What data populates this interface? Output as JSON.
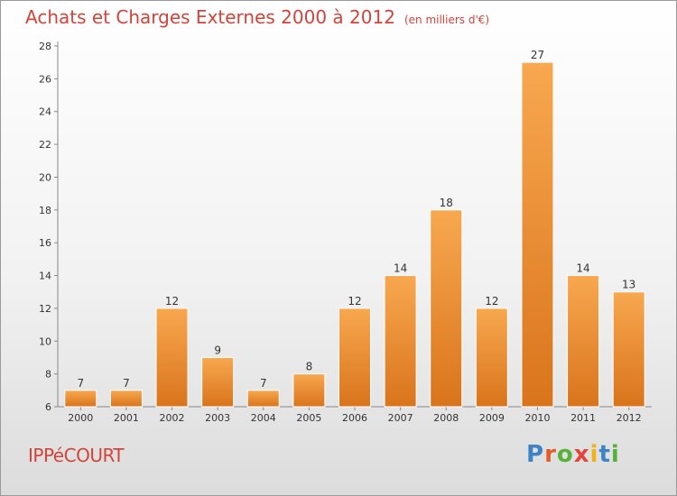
{
  "chart_data": {
    "type": "bar",
    "title": "Achats et Charges Externes 2000 à 2012",
    "subtitle": "(en milliers d'€)",
    "categories": [
      "2000",
      "2001",
      "2002",
      "2003",
      "2004",
      "2005",
      "2006",
      "2007",
      "2008",
      "2009",
      "2010",
      "2011",
      "2012"
    ],
    "values": [
      7,
      7,
      12,
      9,
      7,
      8,
      12,
      14,
      18,
      12,
      27,
      14,
      13
    ],
    "ylim": [
      6,
      28
    ],
    "yticks": [
      6,
      8,
      10,
      12,
      14,
      16,
      18,
      20,
      22,
      24,
      26,
      28
    ],
    "grid": false,
    "legend": "none",
    "bar_color_light": "#f8a850",
    "bar_color_dark": "#d9741c"
  },
  "footer": {
    "town": "IPPéCOURT",
    "logo_text": "Proxiti",
    "logo_letters": [
      {
        "ch": "P",
        "color": "#3d84c6"
      },
      {
        "ch": "r",
        "color": "#e45b2b"
      },
      {
        "ch": "o",
        "color": "#57b13a"
      },
      {
        "ch": "x",
        "color": "#e2463a"
      },
      {
        "ch": "i",
        "color": "#f0b21b"
      },
      {
        "ch": "t",
        "color": "#3d84c6"
      },
      {
        "ch": "i",
        "color": "#57b13a"
      }
    ]
  }
}
